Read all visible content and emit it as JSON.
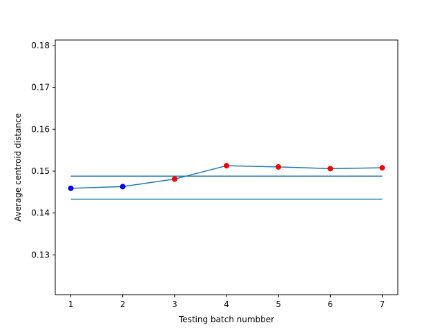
{
  "chart_data": {
    "type": "line",
    "title": "",
    "xlabel": "Testing batch numbber",
    "ylabel": "Average centroid distance",
    "xlim": [
      0.7,
      7.3
    ],
    "ylim": [
      0.1205,
      0.1813
    ],
    "x_ticks": [
      1,
      2,
      3,
      4,
      5,
      6,
      7
    ],
    "y_ticks": [
      0.13,
      0.14,
      0.15,
      0.16,
      0.17,
      0.18
    ],
    "grid": false,
    "series": [
      {
        "x": [
          1,
          2,
          3,
          4,
          5,
          6,
          7
        ],
        "y": [
          0.1459,
          0.1463,
          0.1481,
          0.1513,
          0.151,
          0.1506,
          0.1508
        ],
        "color": "#1f77b4",
        "point_colors": [
          "#0000ff",
          "#0000ff",
          "#ff0000",
          "#ff0000",
          "#ff0000",
          "#ff0000",
          "#ff0000"
        ]
      }
    ],
    "hlines": [
      {
        "y": 0.1488,
        "x_range": [
          1,
          7
        ],
        "color": "#1f77b4"
      },
      {
        "y": 0.1433,
        "x_range": [
          1,
          7
        ],
        "color": "#1f77b4"
      }
    ]
  }
}
